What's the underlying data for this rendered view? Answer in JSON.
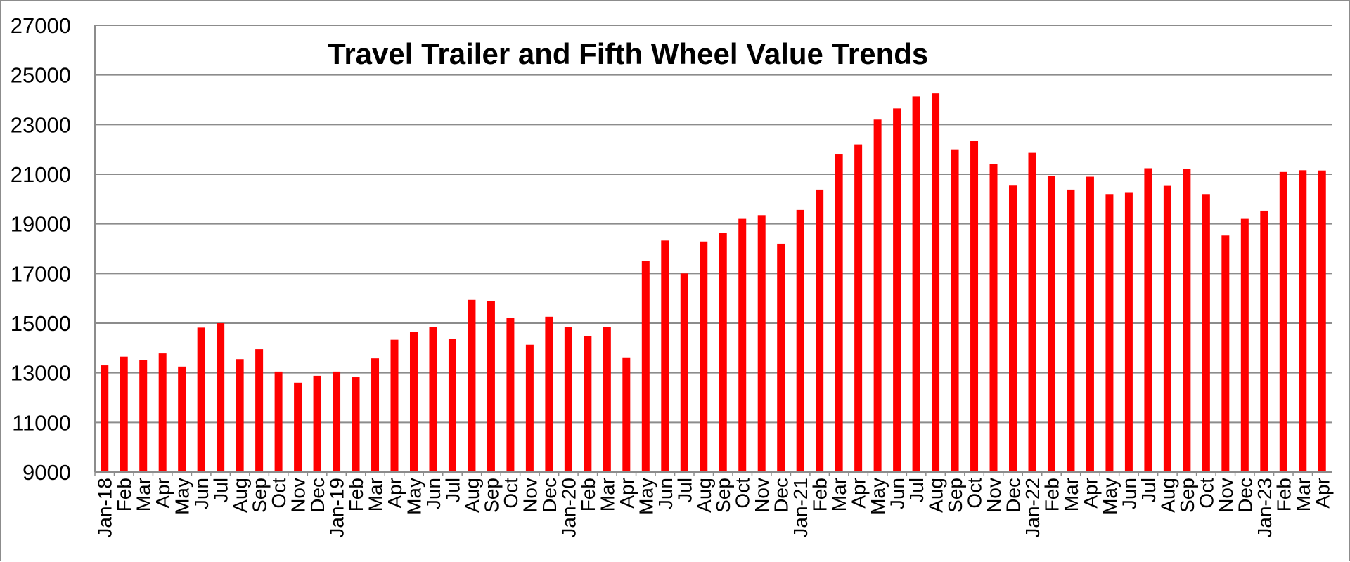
{
  "chart_data": {
    "type": "bar",
    "title": "Travel Trailer and Fifth Wheel Value Trends",
    "xlabel": "",
    "ylabel": "",
    "ylim": [
      9000,
      27000
    ],
    "yticks": [
      9000,
      11000,
      13000,
      15000,
      17000,
      19000,
      21000,
      23000,
      25000,
      27000
    ],
    "grid": true,
    "legend": "none",
    "bar_color": "#ff0000",
    "categories": [
      "Jan-18",
      "Feb",
      "Mar",
      "Apr",
      "May",
      "Jun",
      "Jul",
      "Aug",
      "Sep",
      "Oct",
      "Nov",
      "Dec",
      "Jan-19",
      "Feb",
      "Mar",
      "Apr",
      "May",
      "Jun",
      "Jul",
      "Aug",
      "Sep",
      "Oct",
      "Nov",
      "Dec",
      "Jan-20",
      "Feb",
      "Mar",
      "Apr",
      "May",
      "Jun",
      "Jul",
      "Aug",
      "Sep",
      "Oct",
      "Nov",
      "Dec",
      "Jan-21",
      "Feb",
      "Mar",
      "Apr",
      "May",
      "Jun",
      "Jul",
      "Aug",
      "Sep",
      "Oct",
      "Nov",
      "Dec",
      "Jan-22",
      "Feb",
      "Mar",
      "Apr",
      "May",
      "Jun",
      "Jul",
      "Aug",
      "Sep",
      "Oct",
      "Nov",
      "Dec",
      "Jan-23",
      "Feb",
      "Mar",
      "Apr"
    ],
    "values": [
      13300,
      13650,
      13500,
      13780,
      13250,
      14820,
      15000,
      13550,
      13950,
      13050,
      12600,
      12880,
      13050,
      12820,
      13580,
      14330,
      14660,
      14850,
      14350,
      15940,
      15900,
      15200,
      14130,
      15260,
      14830,
      14480,
      14840,
      13620,
      17500,
      18330,
      17000,
      18290,
      18650,
      19200,
      19350,
      18200,
      19560,
      20380,
      21820,
      22200,
      23200,
      23650,
      24130,
      24250,
      22000,
      22330,
      21420,
      20540,
      21860,
      20940,
      20380,
      20900,
      20200,
      20250,
      21240,
      20530,
      21200,
      20200,
      18530,
      19200,
      19530,
      21090,
      21160,
      21150
    ]
  }
}
